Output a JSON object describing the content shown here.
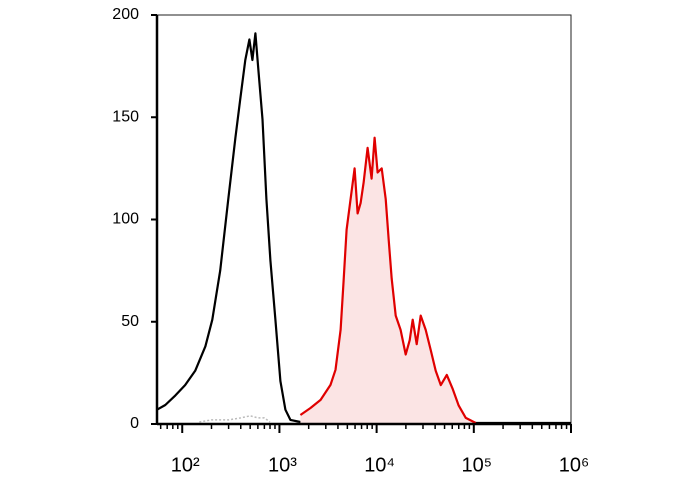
{
  "chart_data": {
    "type": "histogram-line",
    "log_x": true,
    "xlim": [
      55,
      1000000
    ],
    "ylim": [
      0,
      200
    ],
    "xticks": [
      {
        "value": 100,
        "label": "10²"
      },
      {
        "value": 1000,
        "label": "10³"
      },
      {
        "value": 10000,
        "label": "10⁴"
      },
      {
        "value": 100000,
        "label": "10⁵"
      },
      {
        "value": 1000000,
        "label": "10⁶"
      }
    ],
    "xminorticks": [
      60,
      70,
      80,
      90,
      200,
      300,
      400,
      500,
      600,
      700,
      800,
      900,
      2000,
      3000,
      4000,
      5000,
      6000,
      7000,
      8000,
      9000,
      20000,
      30000,
      40000,
      50000,
      60000,
      70000,
      80000,
      90000,
      200000,
      300000,
      400000,
      500000,
      600000,
      700000,
      800000,
      900000
    ],
    "yticks": [
      0,
      50,
      100,
      150,
      200
    ],
    "series": [
      {
        "color": "#bbbbbb",
        "fill": false,
        "dashed": true,
        "x": [
          150,
          200,
          300,
          400,
          500,
          600,
          700,
          800
        ],
        "values": [
          1,
          2,
          2,
          3,
          4,
          3,
          3,
          1
        ]
      },
      {
        "color": "#000000",
        "fill": false,
        "x": [
          55,
          67,
          85,
          107,
          136,
          173,
          204,
          246,
          298,
          352,
          396,
          446,
          491,
          527,
          566,
          608,
          669,
          735,
          808,
          909,
          1024,
          1153,
          1298,
          1644,
          10000,
          1000000
        ],
        "values": [
          7,
          9.3,
          14,
          19,
          26,
          38,
          51,
          75,
          110,
          140,
          159,
          178,
          188,
          178,
          191,
          173,
          149,
          110,
          80,
          51,
          21,
          7,
          2,
          1,
          0.5,
          0.5
        ]
      },
      {
        "color": "#e00000",
        "fill": true,
        "fill_color": "#fbe4e4",
        "x": [
          1644,
          2089,
          2650,
          3357,
          3776,
          4256,
          4571,
          4909,
          5395,
          5929,
          6368,
          6839,
          7345,
          8072,
          8872,
          9528,
          10233,
          11272,
          12388,
          13305,
          14289,
          15703,
          17664,
          19907,
          21878,
          23496,
          25823,
          28445,
          31989,
          36059,
          40551,
          45709,
          52723,
          60813,
          69984,
          82794,
          104954
        ],
        "values": [
          4.4,
          7.8,
          11.8,
          19.1,
          26.5,
          46,
          70,
          95,
          110,
          125,
          103,
          108,
          118,
          135,
          120,
          140,
          123,
          125,
          110,
          90,
          71,
          53,
          46,
          34,
          41,
          51,
          39,
          53,
          46,
          36,
          26,
          19,
          24,
          17,
          9,
          3,
          0.5
        ]
      }
    ]
  }
}
